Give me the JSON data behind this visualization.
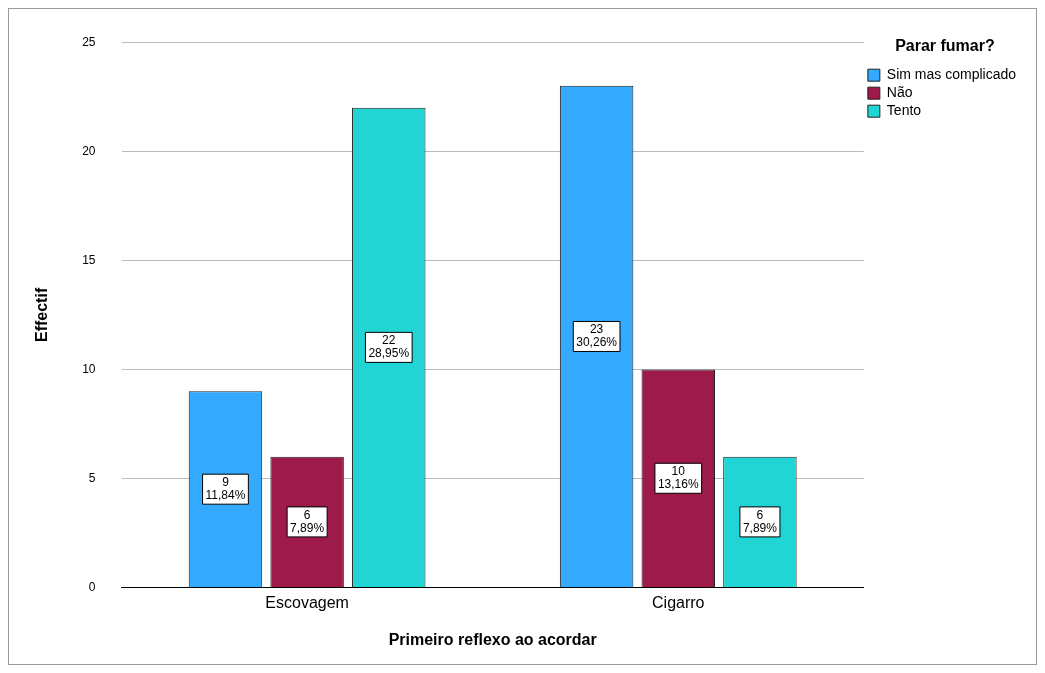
{
  "chart_data": {
    "type": "bar",
    "xlabel": "Primeiro reflexo ao acordar",
    "ylabel": "Effectif",
    "legend_title": "Parar fumar?",
    "categories": [
      "Escovagem",
      "Cigarro"
    ],
    "series": [
      {
        "name": "Sim mas complicado",
        "color": "#33aaff",
        "values": [
          9,
          23
        ],
        "value_labels": [
          "9\n11,84%",
          "23\n30,26%"
        ]
      },
      {
        "name": "Não",
        "color": "#9e1a4a",
        "values": [
          6,
          10
        ],
        "value_labels": [
          "6\n7,89%",
          "10\n13,16%"
        ]
      },
      {
        "name": "Tento",
        "color": "#22d5d5",
        "values": [
          22,
          6
        ],
        "value_labels": [
          "22\n28,95%",
          "6\n7,89%"
        ]
      }
    ],
    "ylim": [
      0,
      25
    ],
    "yticks": [
      0,
      5,
      10,
      15,
      20,
      25
    ],
    "grid": "y",
    "legend": "top right"
  }
}
